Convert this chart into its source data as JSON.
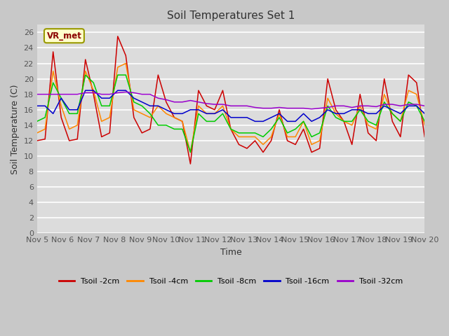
{
  "title": "Soil Temperatures Set 1",
  "xlabel": "Time",
  "ylabel": "Soil Temperature (C)",
  "ylim": [
    0,
    27
  ],
  "yticks": [
    0,
    2,
    4,
    6,
    8,
    10,
    12,
    14,
    16,
    18,
    20,
    22,
    24,
    26
  ],
  "x_labels": [
    "Nov 5",
    "Nov 6",
    "Nov 7",
    "Nov 8",
    "Nov 9",
    "Nov 10",
    "Nov 11",
    "Nov 12",
    "Nov 13",
    "Nov 14",
    "Nov 15",
    "Nov 16",
    "Nov 17",
    "Nov 18",
    "Nov 19",
    "Nov 20"
  ],
  "annotation_text": "VR_met",
  "colors": {
    "t2": "#cc0000",
    "t4": "#ff8800",
    "t8": "#00cc00",
    "t16": "#0000cc",
    "t32": "#9900cc"
  },
  "legend_labels": [
    "Tsoil -2cm",
    "Tsoil -4cm",
    "Tsoil -8cm",
    "Tsoil -16cm",
    "Tsoil -32cm"
  ],
  "fig_bg": "#c8c8c8",
  "plot_bg": "#dcdcdc",
  "grid_color": "#ffffff",
  "title_fontsize": 11,
  "tick_fontsize": 8,
  "label_fontsize": 9,
  "tsoil_2cm": [
    12.0,
    12.2,
    23.5,
    15.0,
    12.0,
    12.2,
    22.5,
    18.0,
    12.5,
    13.0,
    25.5,
    23.0,
    15.0,
    13.0,
    13.5,
    20.5,
    17.0,
    15.0,
    14.5,
    9.0,
    18.5,
    16.5,
    16.0,
    18.5,
    13.5,
    11.5,
    11.0,
    12.0,
    10.5,
    12.0,
    16.0,
    12.0,
    11.5,
    13.5,
    10.5,
    11.0,
    20.0,
    16.0,
    14.5,
    11.5,
    18.0,
    13.0,
    12.0,
    20.0,
    14.5,
    12.5,
    20.5,
    19.5,
    12.5
  ],
  "tsoil_4cm": [
    13.0,
    13.5,
    21.0,
    16.5,
    13.5,
    14.0,
    21.0,
    18.5,
    14.5,
    15.0,
    21.5,
    22.0,
    16.0,
    15.5,
    15.0,
    16.5,
    15.5,
    15.0,
    14.5,
    10.5,
    16.5,
    15.5,
    15.5,
    16.5,
    13.5,
    12.5,
    12.5,
    12.5,
    11.5,
    12.5,
    15.5,
    12.5,
    12.5,
    14.5,
    11.5,
    12.0,
    17.5,
    15.5,
    14.5,
    14.0,
    16.5,
    14.0,
    13.5,
    18.0,
    15.5,
    14.5,
    18.5,
    18.0,
    14.0
  ],
  "tsoil_8cm": [
    14.5,
    15.0,
    19.5,
    17.5,
    15.5,
    15.5,
    20.5,
    19.5,
    16.5,
    16.5,
    20.5,
    20.5,
    17.0,
    16.5,
    15.5,
    14.0,
    14.0,
    13.5,
    13.5,
    10.5,
    15.5,
    14.5,
    14.5,
    15.5,
    13.5,
    13.0,
    13.0,
    13.0,
    12.5,
    13.5,
    15.0,
    13.0,
    13.5,
    14.5,
    12.5,
    13.0,
    16.5,
    15.0,
    14.5,
    14.5,
    16.0,
    14.5,
    14.0,
    17.0,
    15.5,
    14.5,
    17.0,
    16.5,
    14.5
  ],
  "tsoil_16cm": [
    16.5,
    16.5,
    15.5,
    17.5,
    16.0,
    16.0,
    18.5,
    18.5,
    17.5,
    17.5,
    18.5,
    18.5,
    17.5,
    17.0,
    16.5,
    16.5,
    16.0,
    15.5,
    15.5,
    16.0,
    16.0,
    15.5,
    15.5,
    16.0,
    15.0,
    15.0,
    15.0,
    14.5,
    14.5,
    15.0,
    15.5,
    14.5,
    14.5,
    15.5,
    14.5,
    15.0,
    16.0,
    15.5,
    15.5,
    16.0,
    16.0,
    15.5,
    15.5,
    16.5,
    16.0,
    15.5,
    16.5,
    16.5,
    15.5
  ],
  "tsoil_32cm": [
    18.0,
    18.0,
    18.0,
    18.0,
    18.0,
    18.0,
    18.2,
    18.2,
    18.0,
    18.0,
    18.2,
    18.3,
    18.2,
    18.0,
    18.0,
    17.5,
    17.3,
    17.0,
    17.0,
    17.2,
    17.0,
    16.8,
    16.7,
    16.7,
    16.5,
    16.5,
    16.5,
    16.3,
    16.2,
    16.2,
    16.3,
    16.2,
    16.2,
    16.2,
    16.1,
    16.2,
    16.3,
    16.5,
    16.5,
    16.3,
    16.5,
    16.5,
    16.4,
    16.7,
    16.7,
    16.5,
    16.7,
    16.7,
    16.5
  ]
}
